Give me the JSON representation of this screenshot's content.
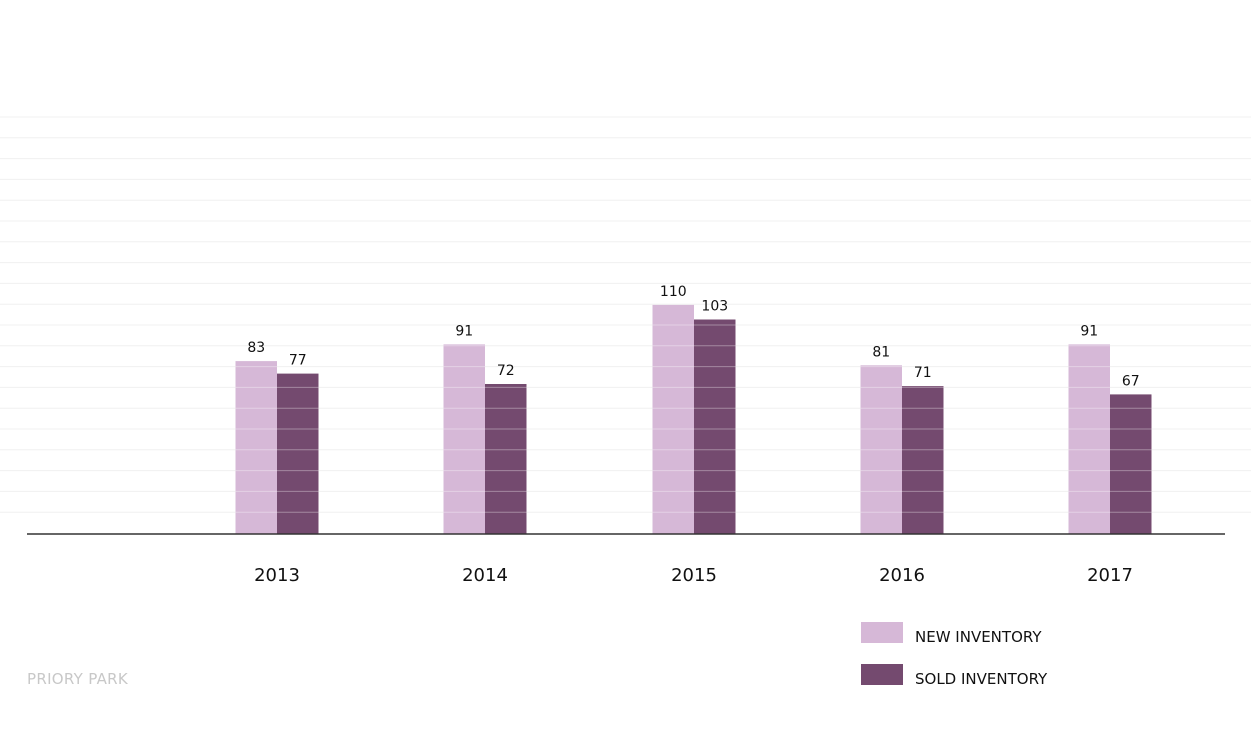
{
  "footer": {
    "label": "PRIORY PARK"
  },
  "colors": {
    "new_inventory": "#d6b8d7",
    "sold_inventory": "#744a6f",
    "gridline": "#f0f0f0",
    "axis": "#333333",
    "text": "#111111",
    "footer_text": "#c8c8c8"
  },
  "chart_data": {
    "type": "bar",
    "categories": [
      "2013",
      "2014",
      "2015",
      "2016",
      "2017"
    ],
    "series": [
      {
        "name": "NEW INVENTORY",
        "values": [
          83,
          91,
          110,
          81,
          91
        ],
        "color": "#d6b8d7"
      },
      {
        "name": "SOLD INVENTORY",
        "values": [
          77,
          72,
          103,
          71,
          67
        ],
        "color": "#744a6f"
      }
    ],
    "title": "",
    "xlabel": "",
    "ylabel": "",
    "ylim": [
      0,
      200
    ],
    "grid": true,
    "data_labels": true,
    "legend_position": "bottom-right"
  }
}
